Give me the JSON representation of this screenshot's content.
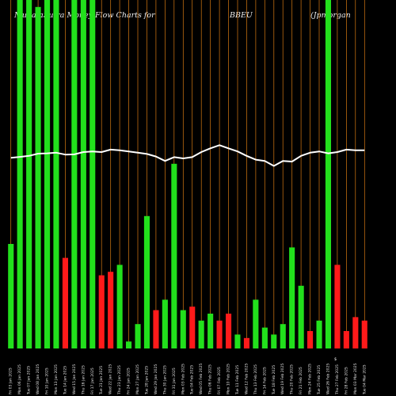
{
  "header": {
    "site": "MunafaSutra Money Flow Charts for",
    "symbol": "BBEU",
    "company": "(Jpmorgan"
  },
  "colors": {
    "background": "#000000",
    "inflow_bar": "#22e01c",
    "outflow_bar": "#ff1a1a",
    "price_line": "#ffffff",
    "separator": "#d87a12"
  },
  "chart_data": {
    "type": "bar",
    "title": "MunafaSutra Money Flow Charts for BBEU (Jpmorgan",
    "currency_label": "$",
    "categories": [
      "Fri 03 Jan 2025",
      "Mon 06 Jan 2025",
      "Tue 07 Jan 2025",
      "Wed 08 Jan 2025",
      "Fri 10 Jan 2025",
      "Mon 13 Jan 2025",
      "Tue 14 Jan 2025",
      "Wed 15 Jan 2025",
      "Thu 16 Jan 2025",
      "Fri 17 Jan 2025",
      "Tue 21 Jan 2025",
      "Wed 22 Jan 2025",
      "Thu 23 Jan 2025",
      "Fri 24 Jan 2025",
      "Mon 27 Jan 2025",
      "Tue 28 Jan 2025",
      "Wed 29 Jan 2025",
      "Thu 30 Jan 2025",
      "Fri 31 Jan 2025",
      "Mon 03 Feb 2025",
      "Tue 04 Feb 2025",
      "Wed 05 Feb 2025",
      "Thu 06 Feb 2025",
      "Fri 07 Feb 2025",
      "Mon 10 Feb 2025",
      "Tue 11 Feb 2025",
      "Wed 12 Feb 2025",
      "Thu 13 Feb 2025",
      "Fri 14 Feb 2025",
      "Tue 18 Feb 2025",
      "Wed 19 Feb 2025",
      "Thu 20 Feb 2025",
      "Fri 21 Feb 2025",
      "Mon 24 Feb 2025",
      "Tue 25 Feb 2025",
      "Wed 26 Feb 2025",
      "Thu 27 Feb 2025",
      "Fri 28 Feb 2025",
      "Mon 03 Mar 2025",
      "Tue 04 Mar 2025"
    ],
    "price": [
      66.45,
      66.52,
      66.6,
      66.78,
      66.8,
      66.85,
      66.7,
      66.72,
      66.9,
      66.95,
      66.9,
      67.1,
      67.05,
      66.95,
      66.85,
      66.75,
      66.55,
      66.2,
      66.5,
      66.4,
      66.5,
      66.9,
      67.2,
      67.45,
      67.2,
      66.95,
      66.6,
      66.3,
      66.2,
      65.8,
      66.2,
      66.15,
      66.6,
      66.85,
      66.95,
      66.8,
      66.9,
      67.1,
      67.05,
      67.05
    ],
    "series": [
      {
        "values": [
          30,
          100,
          100,
          98,
          100,
          100,
          26,
          100,
          100,
          100,
          21,
          22,
          24,
          2,
          7,
          38,
          11,
          14,
          53,
          11,
          12,
          8,
          10,
          8,
          10,
          4,
          3,
          14,
          6,
          4,
          7,
          29,
          18,
          5,
          8,
          100,
          24,
          5,
          9,
          8
        ],
        "directions": [
          "in",
          "in",
          "in",
          "in",
          "in",
          "in",
          "out",
          "in",
          "in",
          "in",
          "out",
          "out",
          "in",
          "in",
          "in",
          "in",
          "out",
          "in",
          "in",
          "in",
          "out",
          "in",
          "in",
          "out",
          "out",
          "in",
          "out",
          "in",
          "in",
          "in",
          "in",
          "in",
          "in",
          "out",
          "in",
          "in",
          "out",
          "out",
          "out",
          "out"
        ]
      }
    ]
  }
}
